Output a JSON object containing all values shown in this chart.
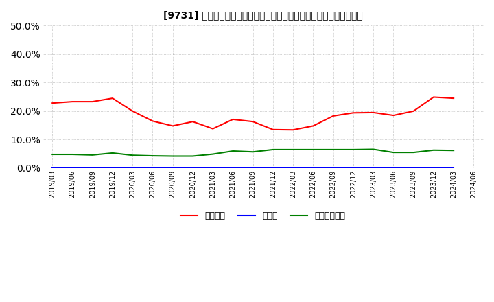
{
  "title": "[9731] 自己資本、のれん、繰延税金資産の総資産に対する比率の推移",
  "x_labels": [
    "2019/03",
    "2019/06",
    "2019/09",
    "2019/12",
    "2020/03",
    "2020/06",
    "2020/09",
    "2020/12",
    "2021/03",
    "2021/06",
    "2021/09",
    "2021/12",
    "2022/03",
    "2022/06",
    "2022/09",
    "2022/12",
    "2023/03",
    "2023/06",
    "2023/09",
    "2023/12",
    "2024/03",
    "2024/06"
  ],
  "jikoshihon": [
    22.8,
    23.3,
    23.3,
    24.5,
    20.0,
    16.5,
    14.8,
    16.3,
    13.8,
    17.1,
    16.3,
    13.5,
    13.4,
    14.8,
    18.3,
    19.4,
    19.5,
    18.5,
    20.0,
    24.9,
    24.5,
    null
  ],
  "noren": [
    0.0,
    0.0,
    0.0,
    0.0,
    0.0,
    0.0,
    0.0,
    0.0,
    0.0,
    0.0,
    0.0,
    0.0,
    0.0,
    0.0,
    0.0,
    0.0,
    0.0,
    0.0,
    0.0,
    0.0,
    0.0,
    null
  ],
  "kurinobezeikishisan": [
    4.8,
    4.8,
    4.6,
    5.3,
    4.5,
    4.3,
    4.2,
    4.2,
    4.9,
    6.0,
    5.7,
    6.5,
    6.5,
    6.5,
    6.5,
    6.5,
    6.6,
    5.5,
    5.5,
    6.3,
    6.2,
    null
  ],
  "jiko_color": "#ff0000",
  "noren_color": "#0000ff",
  "kurin_color": "#008000",
  "bg_color": "#ffffff",
  "plot_bg_color": "#ffffff",
  "grid_color": "#aaaaaa",
  "ylim": [
    0.0,
    0.5
  ],
  "yticks": [
    0.0,
    0.1,
    0.2,
    0.3,
    0.4,
    0.5
  ],
  "legend_labels": [
    "自己資本",
    "のれん",
    "繰延税金資産"
  ]
}
